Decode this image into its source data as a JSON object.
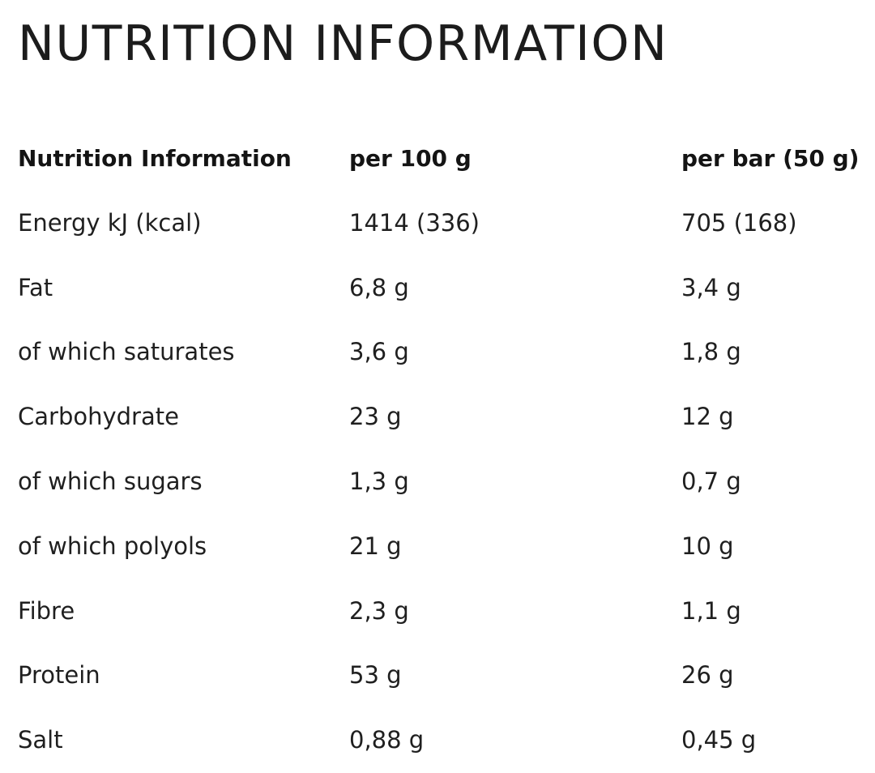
{
  "title": "NUTRITION INFORMATION",
  "table": {
    "headers": [
      "Nutrition Information",
      "per 100 g",
      "per bar (50 g)"
    ],
    "rows": [
      {
        "label": "Energy kJ (kcal)",
        "per_100g": "1414 (336)",
        "per_bar": "705 (168)"
      },
      {
        "label": "Fat",
        "per_100g": "6,8 g",
        "per_bar": "3,4 g"
      },
      {
        "label": "of which saturates",
        "per_100g": "3,6 g",
        "per_bar": "1,8 g"
      },
      {
        "label": "Carbohydrate",
        "per_100g": "23 g",
        "per_bar": "12 g"
      },
      {
        "label": "of which sugars",
        "per_100g": "1,3 g",
        "per_bar": "0,7 g"
      },
      {
        "label": "of which polyols",
        "per_100g": "21 g",
        "per_bar": "10 g"
      },
      {
        "label": "Fibre",
        "per_100g": "2,3 g",
        "per_bar": "1,1 g"
      },
      {
        "label": "Protein",
        "per_100g": "53 g",
        "per_bar": "26 g"
      },
      {
        "label": "Salt",
        "per_100g": "0,88 g",
        "per_bar": "0,45 g"
      }
    ]
  }
}
